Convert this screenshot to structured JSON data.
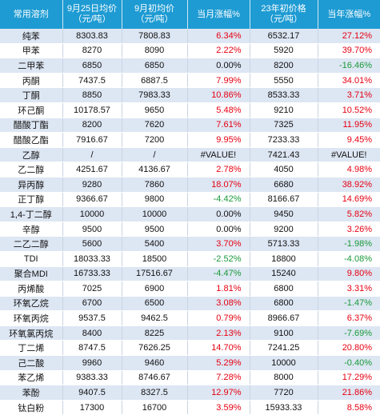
{
  "table": {
    "headers": [
      "常用溶剂",
      "9月25日均价\n（元/吨）",
      "9月初均价\n（元/吨）",
      "当月涨幅%",
      "23年初价格\n（元/吨）",
      "当年涨幅%"
    ],
    "rows": [
      {
        "name": "纯苯",
        "sep25": "8303.83",
        "sep1": "7808.83",
        "mchg": "6.34%",
        "mdir": "up",
        "jan": "6532.17",
        "ychg": "27.12%",
        "ydir": "up"
      },
      {
        "name": "甲苯",
        "sep25": "8270",
        "sep1": "8090",
        "mchg": "2.22%",
        "mdir": "up",
        "jan": "5920",
        "ychg": "39.70%",
        "ydir": "up"
      },
      {
        "name": "二甲苯",
        "sep25": "6850",
        "sep1": "6850",
        "mchg": "0.00%",
        "mdir": "flat",
        "jan": "8200",
        "ychg": "-16.46%",
        "ydir": "down"
      },
      {
        "name": "丙酮",
        "sep25": "7437.5",
        "sep1": "6887.5",
        "mchg": "7.99%",
        "mdir": "up",
        "jan": "5550",
        "ychg": "34.01%",
        "ydir": "up"
      },
      {
        "name": "丁酮",
        "sep25": "8850",
        "sep1": "7983.33",
        "mchg": "10.86%",
        "mdir": "up",
        "jan": "8533.33",
        "ychg": "3.71%",
        "ydir": "up"
      },
      {
        "name": "环己酮",
        "sep25": "10178.57",
        "sep1": "9650",
        "mchg": "5.48%",
        "mdir": "up",
        "jan": "9210",
        "ychg": "10.52%",
        "ydir": "up"
      },
      {
        "name": "醋酸丁酯",
        "sep25": "8200",
        "sep1": "7620",
        "mchg": "7.61%",
        "mdir": "up",
        "jan": "7325",
        "ychg": "11.95%",
        "ydir": "up"
      },
      {
        "name": "醋酸乙酯",
        "sep25": "7916.67",
        "sep1": "7200",
        "mchg": "9.95%",
        "mdir": "up",
        "jan": "7233.33",
        "ychg": "9.45%",
        "ydir": "up"
      },
      {
        "name": "乙醇",
        "sep25": "/",
        "sep1": "/",
        "mchg": "#VALUE!",
        "mdir": "na",
        "jan": "7421.43",
        "ychg": "#VALUE!",
        "ydir": "na"
      },
      {
        "name": "乙二醇",
        "sep25": "4251.67",
        "sep1": "4136.67",
        "mchg": "2.78%",
        "mdir": "up",
        "jan": "4050",
        "ychg": "4.98%",
        "ydir": "up"
      },
      {
        "name": "异丙醇",
        "sep25": "9280",
        "sep1": "7860",
        "mchg": "18.07%",
        "mdir": "up",
        "jan": "6680",
        "ychg": "38.92%",
        "ydir": "up"
      },
      {
        "name": "正丁醇",
        "sep25": "9366.67",
        "sep1": "9800",
        "mchg": "-4.42%",
        "mdir": "down",
        "jan": "8166.67",
        "ychg": "14.69%",
        "ydir": "up"
      },
      {
        "name": "1,4-丁二醇",
        "sep25": "10000",
        "sep1": "10000",
        "mchg": "0.00%",
        "mdir": "flat",
        "jan": "9450",
        "ychg": "5.82%",
        "ydir": "up"
      },
      {
        "name": "辛醇",
        "sep25": "9500",
        "sep1": "9500",
        "mchg": "0.00%",
        "mdir": "flat",
        "jan": "9200",
        "ychg": "3.26%",
        "ydir": "up"
      },
      {
        "name": "二乙二醇",
        "sep25": "5600",
        "sep1": "5400",
        "mchg": "3.70%",
        "mdir": "up",
        "jan": "5713.33",
        "ychg": "-1.98%",
        "ydir": "down"
      },
      {
        "name": "TDI",
        "sep25": "18033.33",
        "sep1": "18500",
        "mchg": "-2.52%",
        "mdir": "down",
        "jan": "18800",
        "ychg": "-4.08%",
        "ydir": "down"
      },
      {
        "name": "聚合MDI",
        "sep25": "16733.33",
        "sep1": "17516.67",
        "mchg": "-4.47%",
        "mdir": "down",
        "jan": "15240",
        "ychg": "9.80%",
        "ydir": "up"
      },
      {
        "name": "丙烯酸",
        "sep25": "7025",
        "sep1": "6900",
        "mchg": "1.81%",
        "mdir": "up",
        "jan": "6800",
        "ychg": "3.31%",
        "ydir": "up"
      },
      {
        "name": "环氧乙烷",
        "sep25": "6700",
        "sep1": "6500",
        "mchg": "3.08%",
        "mdir": "up",
        "jan": "6800",
        "ychg": "-1.47%",
        "ydir": "down"
      },
      {
        "name": "环氧丙烷",
        "sep25": "9537.5",
        "sep1": "9462.5",
        "mchg": "0.79%",
        "mdir": "up",
        "jan": "8966.67",
        "ychg": "6.37%",
        "ydir": "up"
      },
      {
        "name": "环氧氯丙烷",
        "sep25": "8400",
        "sep1": "8225",
        "mchg": "2.13%",
        "mdir": "up",
        "jan": "9100",
        "ychg": "-7.69%",
        "ydir": "down"
      },
      {
        "name": "丁二烯",
        "sep25": "8747.5",
        "sep1": "7626.25",
        "mchg": "14.70%",
        "mdir": "up",
        "jan": "7241.25",
        "ychg": "20.80%",
        "ydir": "up"
      },
      {
        "name": "己二酸",
        "sep25": "9960",
        "sep1": "9460",
        "mchg": "5.29%",
        "mdir": "up",
        "jan": "10000",
        "ychg": "-0.40%",
        "ydir": "down"
      },
      {
        "name": "苯乙烯",
        "sep25": "9383.33",
        "sep1": "8746.67",
        "mchg": "7.28%",
        "mdir": "up",
        "jan": "8000",
        "ychg": "17.29%",
        "ydir": "up"
      },
      {
        "name": "苯酚",
        "sep25": "9407.5",
        "sep1": "8327.5",
        "mchg": "12.97%",
        "mdir": "up",
        "jan": "7720",
        "ychg": "21.86%",
        "ydir": "up"
      },
      {
        "name": "钛白粉",
        "sep25": "17300",
        "sep1": "16700",
        "mchg": "3.59%",
        "mdir": "up",
        "jan": "15933.33",
        "ychg": "8.58%",
        "ydir": "up"
      }
    ],
    "colors": {
      "header_bg": "#1e9bd3",
      "header_text": "#ffffff",
      "band_row": "#dde6f3",
      "plain_row": "#ffffff",
      "rise": "#e60012",
      "fall": "#1a9a3a"
    }
  }
}
